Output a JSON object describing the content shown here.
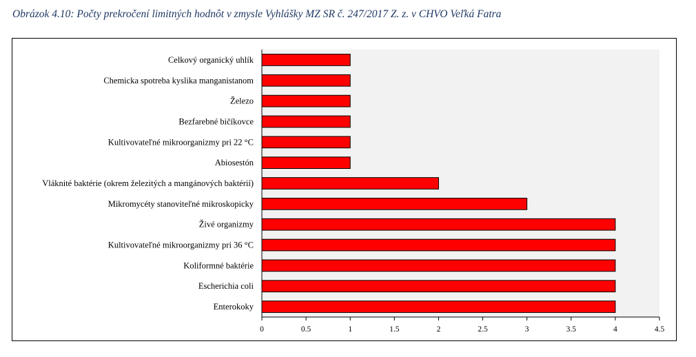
{
  "caption": "Obrázok 4.10: Počty prekročení limitných hodnôt v zmysle Vyhlášky MZ SR č. 247/2017 Z. z. v CHVO Veľká Fatra",
  "colors": {
    "bar": "#ff0000",
    "plot_bg": "#f2f2f2",
    "bar_stroke": "#000000"
  },
  "chart_data": {
    "type": "bar",
    "orientation": "horizontal",
    "categories": [
      "Celkový organický uhlík",
      "Chemicka spotreba kyslika manganistanom",
      "Železo",
      "Bezfarebné bičíkovce",
      "Kultivovateľné mikroorganizmy pri 22 °C",
      "Abiosestón",
      "Vláknité baktérie (okrem železitých a mangánových baktérií)",
      "Mikromycéty stanoviteľné mikroskopicky",
      "Živé organizmy",
      "Kultivovateľné mikroorganizmy pri 36 °C",
      "Koliformné baktérie",
      "Escherichia coli",
      "Enterokoky"
    ],
    "values": [
      1,
      1,
      1,
      1,
      1,
      1,
      2,
      3,
      4,
      4,
      4,
      4,
      4
    ],
    "xlim": [
      0,
      4.5
    ],
    "x_ticks": [
      "0",
      "0.5",
      "1",
      "1.5",
      "2",
      "2.5",
      "3",
      "3.5",
      "4",
      "4.5"
    ],
    "grid": false,
    "legend": "none"
  }
}
